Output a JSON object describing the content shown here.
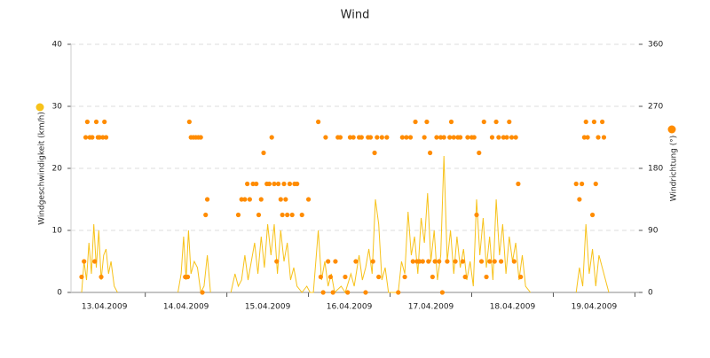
{
  "chart_data": {
    "type": "line-scatter",
    "title": "Wind",
    "ylabel": "Windgeschwindigkeit (km/h)",
    "y2label": "Windrichtung (°)",
    "xlim": [
      0.09,
      7.05
    ],
    "xticks": [
      {
        "value": 0.5,
        "label": "13.04.2009"
      },
      {
        "value": 1.5,
        "label": "14.04.2009"
      },
      {
        "value": 2.5,
        "label": "15.04.2009"
      },
      {
        "value": 3.5,
        "label": "16.04.2009"
      },
      {
        "value": 4.5,
        "label": "17.04.2009"
      },
      {
        "value": 5.5,
        "label": "18.04.2009"
      },
      {
        "value": 6.5,
        "label": "19.04.2009"
      }
    ],
    "ylim": [
      0,
      40
    ],
    "yticks": [
      0,
      10,
      20,
      30,
      40
    ],
    "y2lim": [
      0,
      360
    ],
    "y2ticks": [
      0,
      90,
      180,
      270,
      360
    ],
    "grid": true,
    "series": [
      {
        "type": "line",
        "color": "#f7c21a",
        "x": [
          0.22,
          0.25,
          0.28,
          0.31,
          0.34,
          0.37,
          0.4,
          0.43,
          0.46,
          0.49,
          0.52,
          0.55,
          0.58,
          0.62,
          0.66,
          1.0,
          1.4,
          1.44,
          1.47,
          1.5,
          1.53,
          1.56,
          1.6,
          1.64,
          1.68,
          1.72,
          1.76,
          1.8,
          1.9,
          2.05,
          2.1,
          2.14,
          2.18,
          2.22,
          2.26,
          2.3,
          2.34,
          2.38,
          2.42,
          2.46,
          2.5,
          2.54,
          2.58,
          2.62,
          2.66,
          2.7,
          2.74,
          2.78,
          2.82,
          2.86,
          2.92,
          2.98,
          3.02,
          3.06,
          3.12,
          3.16,
          3.2,
          3.24,
          3.28,
          3.32,
          3.4,
          3.45,
          3.52,
          3.56,
          3.62,
          3.66,
          3.7,
          3.74,
          3.78,
          3.82,
          3.86,
          3.9,
          3.94,
          3.98,
          4.1,
          4.14,
          4.18,
          4.22,
          4.26,
          4.3,
          4.34,
          4.38,
          4.42,
          4.46,
          4.5,
          4.54,
          4.58,
          4.62,
          4.66,
          4.7,
          4.74,
          4.78,
          4.82,
          4.86,
          4.9,
          4.94,
          4.98,
          5.02,
          5.06,
          5.1,
          5.14,
          5.18,
          5.22,
          5.26,
          5.3,
          5.34,
          5.38,
          5.42,
          5.46,
          5.5,
          5.54,
          5.58,
          5.62,
          5.66,
          5.72,
          6.0,
          6.28,
          6.32,
          6.36,
          6.4,
          6.44,
          6.48,
          6.52,
          6.56,
          6.6,
          6.64,
          6.68
        ],
        "values": [
          0,
          5,
          2,
          8,
          3,
          11,
          4,
          10,
          2,
          6,
          7,
          3,
          5,
          1,
          0,
          null,
          0,
          3,
          9,
          2,
          10,
          3,
          5,
          4,
          0,
          1,
          6,
          0,
          null,
          0,
          3,
          1,
          2,
          6,
          2,
          5,
          8,
          3,
          9,
          4,
          11,
          6,
          11,
          3,
          10,
          5,
          8,
          2,
          4,
          1,
          0,
          1,
          0,
          0,
          10,
          2,
          5,
          1,
          3,
          0,
          1,
          0,
          3,
          1,
          6,
          2,
          4,
          7,
          3,
          15,
          11,
          2,
          4,
          0,
          0,
          5,
          3,
          13,
          6,
          9,
          3,
          12,
          8,
          16,
          5,
          10,
          2,
          6,
          22,
          5,
          10,
          3,
          9,
          4,
          7,
          2,
          5,
          1,
          15,
          6,
          12,
          4,
          9,
          2,
          15,
          6,
          11,
          3,
          9,
          5,
          8,
          2,
          6,
          1,
          0,
          null,
          0,
          4,
          1,
          11,
          3,
          7,
          1,
          6,
          4,
          2,
          0
        ]
      },
      {
        "type": "scatter",
        "axis": "y2",
        "color": "#ff8c00",
        "x": [
          0.22,
          0.25,
          0.27,
          0.29,
          0.32,
          0.35,
          0.38,
          0.4,
          0.42,
          0.44,
          0.46,
          0.48,
          0.5,
          0.52,
          1.49,
          1.52,
          1.54,
          1.56,
          1.59,
          1.62,
          1.65,
          1.68,
          1.7,
          1.74,
          1.76,
          2.14,
          2.18,
          2.22,
          2.25,
          2.28,
          2.32,
          2.36,
          2.39,
          2.42,
          2.45,
          2.49,
          2.52,
          2.55,
          2.58,
          2.61,
          2.63,
          2.66,
          2.68,
          2.7,
          2.72,
          2.74,
          2.77,
          2.8,
          2.83,
          2.86,
          2.92,
          3.0,
          3.12,
          3.15,
          3.18,
          3.21,
          3.24,
          3.27,
          3.3,
          3.33,
          3.36,
          3.39,
          3.45,
          3.48,
          3.51,
          3.55,
          3.58,
          3.62,
          3.65,
          3.7,
          3.73,
          3.76,
          3.79,
          3.81,
          3.84,
          3.86,
          3.9,
          3.96,
          4.1,
          4.15,
          4.18,
          4.2,
          4.25,
          4.28,
          4.31,
          4.33,
          4.36,
          4.4,
          4.42,
          4.45,
          4.47,
          4.49,
          4.52,
          4.55,
          4.57,
          4.6,
          4.62,
          4.64,
          4.66,
          4.7,
          4.73,
          4.75,
          4.78,
          4.8,
          4.83,
          4.86,
          4.89,
          4.92,
          4.95,
          5.0,
          5.03,
          5.06,
          5.09,
          5.12,
          5.15,
          5.18,
          5.22,
          5.25,
          5.28,
          5.3,
          5.33,
          5.36,
          5.39,
          5.43,
          5.46,
          5.49,
          5.52,
          5.54,
          5.57,
          5.6,
          6.28,
          6.32,
          6.35,
          6.38,
          6.4,
          6.42,
          6.48,
          6.5,
          6.52,
          6.55,
          6.6,
          6.62
        ],
        "values": [
          22.5,
          45,
          225,
          247.5,
          225,
          225,
          45,
          247.5,
          225,
          225,
          22.5,
          225,
          247.5,
          225,
          22.5,
          22.5,
          247.5,
          225,
          225,
          225,
          225,
          225,
          0,
          112.5,
          135,
          112.5,
          135,
          135,
          157.5,
          135,
          157.5,
          157.5,
          112.5,
          135,
          202.5,
          157.5,
          157.5,
          225,
          157.5,
          45,
          157.5,
          135,
          112.5,
          157.5,
          135,
          112.5,
          157.5,
          112.5,
          157.5,
          157.5,
          112.5,
          135,
          247.5,
          22.5,
          0,
          225,
          45,
          22.5,
          0,
          45,
          225,
          225,
          22.5,
          0,
          225,
          225,
          45,
          225,
          225,
          0,
          225,
          225,
          45,
          202.5,
          225,
          22.5,
          225,
          225,
          0,
          225,
          22.5,
          225,
          225,
          45,
          247.5,
          45,
          45,
          45,
          225,
          247.5,
          45,
          202.5,
          22.5,
          45,
          225,
          45,
          225,
          0,
          225,
          45,
          225,
          247.5,
          225,
          45,
          225,
          225,
          45,
          22.5,
          225,
          225,
          225,
          112.5,
          202.5,
          45,
          247.5,
          22.5,
          45,
          225,
          45,
          247.5,
          225,
          45,
          225,
          225,
          247.5,
          225,
          45,
          225,
          157.5,
          22.5,
          157.5,
          135,
          157.5,
          225,
          247.5,
          225,
          112.5,
          247.5,
          157.5,
          225,
          247.5,
          225
        ]
      }
    ]
  }
}
